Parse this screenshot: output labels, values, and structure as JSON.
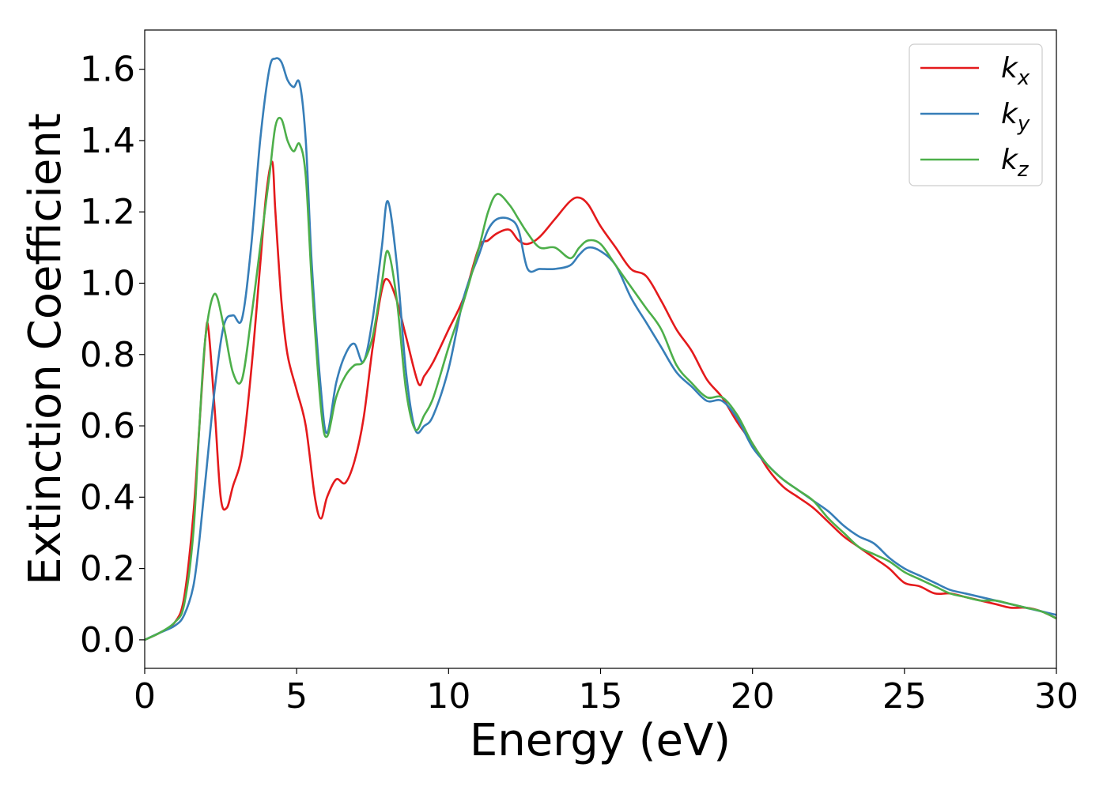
{
  "chart_data": {
    "type": "line",
    "title": "",
    "xlabel": "Energy (eV)",
    "ylabel": "Extinction Coefficient",
    "xlim": [
      0,
      30
    ],
    "ylim": [
      -0.08,
      1.71
    ],
    "xticks": [
      0,
      5,
      10,
      15,
      20,
      25,
      30
    ],
    "xtick_labels": [
      "0",
      "5",
      "10",
      "15",
      "20",
      "25",
      "30"
    ],
    "yticks": [
      0.0,
      0.2,
      0.4,
      0.6,
      0.8,
      1.0,
      1.2,
      1.4,
      1.6
    ],
    "ytick_labels": [
      "0.0",
      "0.2",
      "0.4",
      "0.6",
      "0.8",
      "1.0",
      "1.2",
      "1.4",
      "1.6"
    ],
    "grid": false,
    "legend_position": "top-right",
    "series": [
      {
        "name": "k_x",
        "label_base": "k",
        "label_sub": "x",
        "color": "#e41a1c",
        "x": [
          0,
          0.5,
          1.0,
          1.3,
          1.6,
          1.8,
          2.0,
          2.1,
          2.3,
          2.5,
          2.7,
          2.9,
          3.2,
          3.5,
          3.8,
          4.0,
          4.2,
          4.3,
          4.5,
          4.7,
          5.0,
          5.3,
          5.6,
          5.8,
          6.0,
          6.3,
          6.6,
          6.9,
          7.2,
          7.5,
          7.8,
          8.0,
          8.3,
          8.6,
          9.0,
          9.2,
          9.5,
          10.0,
          10.5,
          11.0,
          11.3,
          11.6,
          12.0,
          12.3,
          12.6,
          13.0,
          13.5,
          14.0,
          14.3,
          14.6,
          15.0,
          15.5,
          16.0,
          16.5,
          17.0,
          17.5,
          18.0,
          18.5,
          19.0,
          19.5,
          20.0,
          20.5,
          21.0,
          21.5,
          22.0,
          22.5,
          23.0,
          23.5,
          24.0,
          24.5,
          25.0,
          25.5,
          26.0,
          26.5,
          27.0,
          27.5,
          28.0,
          28.5,
          29.0,
          29.5,
          30.0
        ],
        "values": [
          0.0,
          0.02,
          0.05,
          0.12,
          0.35,
          0.6,
          0.85,
          0.87,
          0.65,
          0.4,
          0.37,
          0.43,
          0.52,
          0.75,
          1.05,
          1.25,
          1.34,
          1.2,
          0.95,
          0.8,
          0.7,
          0.6,
          0.4,
          0.34,
          0.4,
          0.45,
          0.44,
          0.5,
          0.62,
          0.82,
          0.98,
          1.01,
          0.95,
          0.85,
          0.72,
          0.74,
          0.78,
          0.87,
          0.96,
          1.1,
          1.12,
          1.14,
          1.15,
          1.12,
          1.11,
          1.13,
          1.18,
          1.23,
          1.24,
          1.22,
          1.16,
          1.1,
          1.04,
          1.02,
          0.95,
          0.87,
          0.81,
          0.73,
          0.68,
          0.61,
          0.55,
          0.48,
          0.43,
          0.4,
          0.37,
          0.33,
          0.29,
          0.26,
          0.23,
          0.2,
          0.16,
          0.15,
          0.13,
          0.13,
          0.12,
          0.11,
          0.1,
          0.09,
          0.09,
          0.08,
          0.06
        ]
      },
      {
        "name": "k_y",
        "label_base": "k",
        "label_sub": "y",
        "color": "#377eb8",
        "x": [
          0,
          0.5,
          1.0,
          1.3,
          1.6,
          1.8,
          2.0,
          2.3,
          2.6,
          2.9,
          3.2,
          3.5,
          3.8,
          4.1,
          4.3,
          4.5,
          4.7,
          4.9,
          5.1,
          5.3,
          5.5,
          5.8,
          6.0,
          6.3,
          6.6,
          6.9,
          7.2,
          7.5,
          7.8,
          8.0,
          8.3,
          8.6,
          8.9,
          9.2,
          9.5,
          10.0,
          10.5,
          11.0,
          11.3,
          11.6,
          12.0,
          12.3,
          12.6,
          13.0,
          13.5,
          14.0,
          14.3,
          14.6,
          15.0,
          15.5,
          16.0,
          16.5,
          17.0,
          17.5,
          18.0,
          18.5,
          19.0,
          19.5,
          20.0,
          20.5,
          21.0,
          21.5,
          22.0,
          22.5,
          23.0,
          23.5,
          24.0,
          24.5,
          25.0,
          25.5,
          26.0,
          26.5,
          27.0,
          27.5,
          28.0,
          28.5,
          29.0,
          29.5,
          30.0
        ],
        "values": [
          0.0,
          0.02,
          0.04,
          0.07,
          0.15,
          0.28,
          0.45,
          0.7,
          0.88,
          0.91,
          0.9,
          1.1,
          1.4,
          1.6,
          1.63,
          1.62,
          1.57,
          1.55,
          1.56,
          1.4,
          1.05,
          0.7,
          0.58,
          0.72,
          0.8,
          0.83,
          0.78,
          0.9,
          1.1,
          1.23,
          1.05,
          0.75,
          0.59,
          0.6,
          0.63,
          0.76,
          0.96,
          1.08,
          1.15,
          1.18,
          1.18,
          1.15,
          1.04,
          1.04,
          1.04,
          1.05,
          1.08,
          1.1,
          1.09,
          1.05,
          0.96,
          0.89,
          0.82,
          0.75,
          0.71,
          0.67,
          0.67,
          0.62,
          0.54,
          0.49,
          0.45,
          0.42,
          0.39,
          0.36,
          0.32,
          0.29,
          0.27,
          0.23,
          0.2,
          0.18,
          0.16,
          0.14,
          0.13,
          0.12,
          0.11,
          0.1,
          0.09,
          0.08,
          0.07
        ]
      },
      {
        "name": "k_z",
        "label_base": "k",
        "label_sub": "z",
        "color": "#4daf4a",
        "x": [
          0,
          0.5,
          1.0,
          1.3,
          1.6,
          1.8,
          2.0,
          2.3,
          2.6,
          2.9,
          3.2,
          3.5,
          3.8,
          4.1,
          4.3,
          4.5,
          4.7,
          4.9,
          5.1,
          5.3,
          5.5,
          5.8,
          6.0,
          6.3,
          6.6,
          6.9,
          7.2,
          7.5,
          7.8,
          8.0,
          8.3,
          8.6,
          8.9,
          9.2,
          9.5,
          10.0,
          10.5,
          11.0,
          11.3,
          11.6,
          12.0,
          12.3,
          12.6,
          13.0,
          13.5,
          14.0,
          14.3,
          14.6,
          15.0,
          15.5,
          16.0,
          16.5,
          17.0,
          17.5,
          18.0,
          18.5,
          19.0,
          19.5,
          20.0,
          20.5,
          21.0,
          21.5,
          22.0,
          22.5,
          23.0,
          23.5,
          24.0,
          24.5,
          25.0,
          25.5,
          26.0,
          26.5,
          27.0,
          27.5,
          28.0,
          28.5,
          29.0,
          29.5,
          30.0
        ],
        "values": [
          0.0,
          0.02,
          0.05,
          0.1,
          0.3,
          0.6,
          0.85,
          0.97,
          0.88,
          0.75,
          0.73,
          0.9,
          1.1,
          1.3,
          1.44,
          1.46,
          1.4,
          1.37,
          1.39,
          1.3,
          1.0,
          0.65,
          0.57,
          0.68,
          0.74,
          0.77,
          0.78,
          0.85,
          1.0,
          1.09,
          0.95,
          0.7,
          0.59,
          0.63,
          0.68,
          0.82,
          0.95,
          1.1,
          1.2,
          1.25,
          1.22,
          1.18,
          1.14,
          1.1,
          1.1,
          1.07,
          1.1,
          1.12,
          1.11,
          1.05,
          0.99,
          0.93,
          0.87,
          0.77,
          0.72,
          0.68,
          0.68,
          0.63,
          0.55,
          0.49,
          0.45,
          0.42,
          0.39,
          0.34,
          0.3,
          0.26,
          0.24,
          0.22,
          0.19,
          0.17,
          0.15,
          0.13,
          0.12,
          0.11,
          0.11,
          0.1,
          0.09,
          0.08,
          0.06
        ]
      }
    ]
  }
}
